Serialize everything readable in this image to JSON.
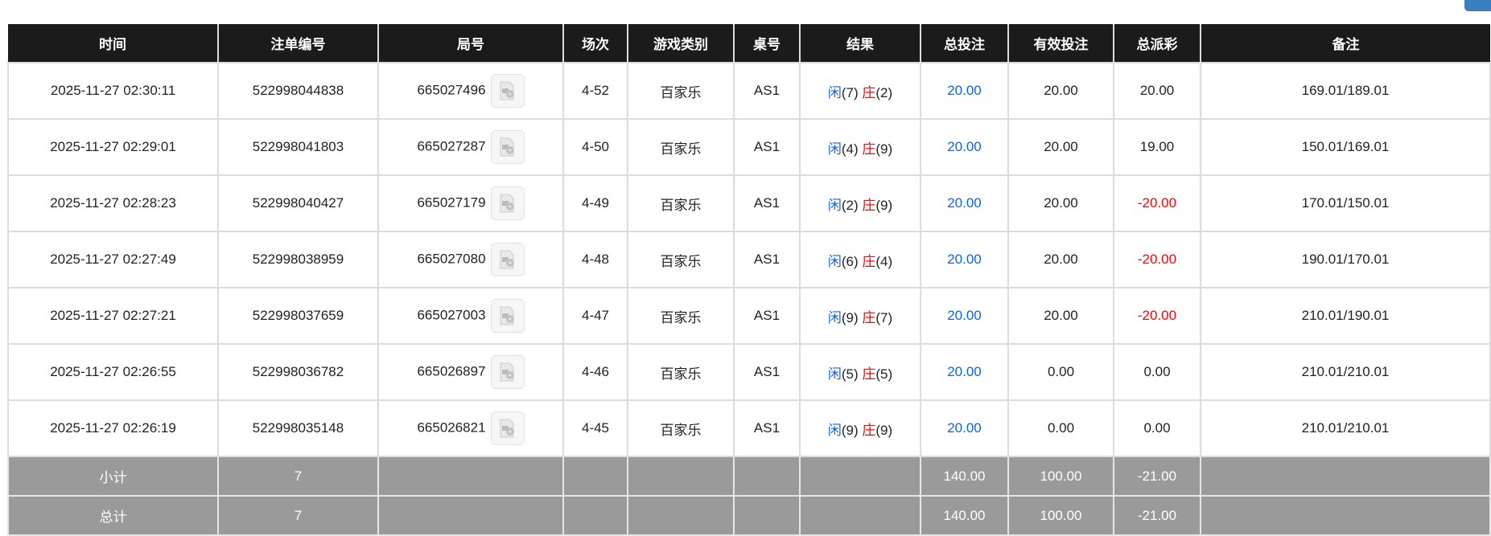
{
  "headers": [
    "时间",
    "注单编号",
    "局号",
    "场次",
    "游戏类别",
    "桌号",
    "结果",
    "总投注",
    "有效投注",
    "总派彩",
    "备注"
  ],
  "rows": [
    {
      "time": "2025-11-27 02:30:11",
      "bet_id": "522998044838",
      "round": "665027496",
      "shoe": "4-52",
      "game": "百家乐",
      "table": "AS1",
      "player_label": "闲",
      "player": "(7)",
      "banker_label": "庄",
      "banker": "(2)",
      "total_bet": "20.00",
      "valid_bet": "20.00",
      "payout": "20.00",
      "payout_negative": false,
      "note": "169.01/189.01"
    },
    {
      "time": "2025-11-27 02:29:01",
      "bet_id": "522998041803",
      "round": "665027287",
      "shoe": "4-50",
      "game": "百家乐",
      "table": "AS1",
      "player_label": "闲",
      "player": "(4)",
      "banker_label": "庄",
      "banker": "(9)",
      "total_bet": "20.00",
      "valid_bet": "20.00",
      "payout": "19.00",
      "payout_negative": false,
      "note": "150.01/169.01"
    },
    {
      "time": "2025-11-27 02:28:23",
      "bet_id": "522998040427",
      "round": "665027179",
      "shoe": "4-49",
      "game": "百家乐",
      "table": "AS1",
      "player_label": "闲",
      "player": "(2)",
      "banker_label": "庄",
      "banker": "(9)",
      "total_bet": "20.00",
      "valid_bet": "20.00",
      "payout": "-20.00",
      "payout_negative": true,
      "note": "170.01/150.01"
    },
    {
      "time": "2025-11-27 02:27:49",
      "bet_id": "522998038959",
      "round": "665027080",
      "shoe": "4-48",
      "game": "百家乐",
      "table": "AS1",
      "player_label": "闲",
      "player": "(6)",
      "banker_label": "庄",
      "banker": "(4)",
      "total_bet": "20.00",
      "valid_bet": "20.00",
      "payout": "-20.00",
      "payout_negative": true,
      "note": "190.01/170.01"
    },
    {
      "time": "2025-11-27 02:27:21",
      "bet_id": "522998037659",
      "round": "665027003",
      "shoe": "4-47",
      "game": "百家乐",
      "table": "AS1",
      "player_label": "闲",
      "player": "(9)",
      "banker_label": "庄",
      "banker": "(7)",
      "total_bet": "20.00",
      "valid_bet": "20.00",
      "payout": "-20.00",
      "payout_negative": true,
      "note": "210.01/190.01"
    },
    {
      "time": "2025-11-27 02:26:55",
      "bet_id": "522998036782",
      "round": "665026897",
      "shoe": "4-46",
      "game": "百家乐",
      "table": "AS1",
      "player_label": "闲",
      "player": "(5)",
      "banker_label": "庄",
      "banker": "(5)",
      "total_bet": "20.00",
      "valid_bet": "0.00",
      "payout": "0.00",
      "payout_negative": false,
      "note": "210.01/210.01"
    },
    {
      "time": "2025-11-27 02:26:19",
      "bet_id": "522998035148",
      "round": "665026821",
      "shoe": "4-45",
      "game": "百家乐",
      "table": "AS1",
      "player_label": "闲",
      "player": "(9)",
      "banker_label": "庄",
      "banker": "(9)",
      "total_bet": "20.00",
      "valid_bet": "0.00",
      "payout": "0.00",
      "payout_negative": false,
      "note": "210.01/210.01"
    }
  ],
  "subtotal": {
    "label": "小计",
    "count": "7",
    "total_bet": "140.00",
    "valid_bet": "100.00",
    "payout": "-21.00"
  },
  "total": {
    "label": "总计",
    "count": "7",
    "total_bet": "140.00",
    "valid_bet": "100.00",
    "payout": "-21.00"
  },
  "colors": {
    "header_bg": "#1b1b1b",
    "player": "#0a64f0",
    "banker": "#ff0000",
    "negative": "#ff0000",
    "summary_bg": "#9a9a9a",
    "top_button": "#3a7ebf"
  },
  "icons": {
    "replay": "video-file-icon"
  }
}
